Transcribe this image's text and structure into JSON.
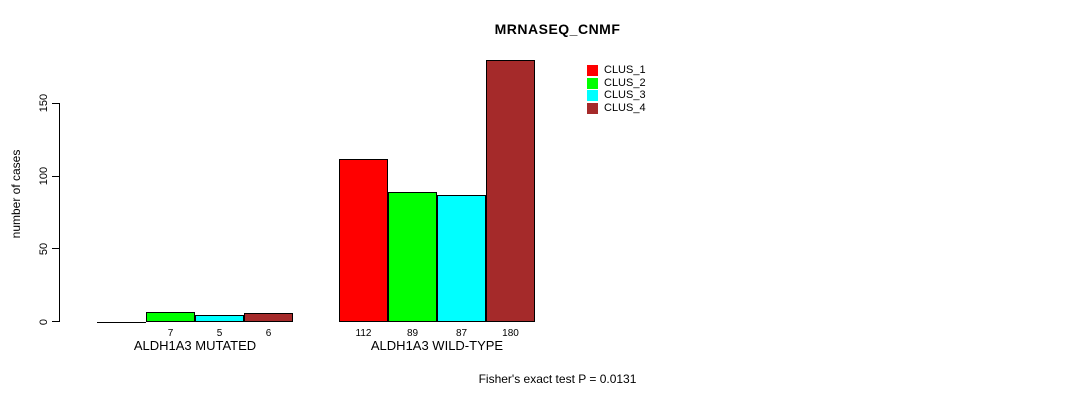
{
  "chart_data": {
    "type": "bar",
    "title": "MRNASEQ_CNMF",
    "ylabel": "number of cases",
    "xlabel": "",
    "ylim": [
      0,
      180
    ],
    "yticks": [
      0,
      50,
      100,
      150
    ],
    "grid": false,
    "legend_position": "top-right-inside",
    "categories": [
      "ALDH1A3 MUTATED",
      "ALDH1A3 WILD-TYPE"
    ],
    "series": [
      {
        "name": "CLUS_1",
        "color": "#FF0000",
        "values": [
          0,
          112
        ]
      },
      {
        "name": "CLUS_2",
        "color": "#00FF00",
        "values": [
          7,
          89
        ]
      },
      {
        "name": "CLUS_3",
        "color": "#00FFFF",
        "values": [
          5,
          87
        ]
      },
      {
        "name": "CLUS_4",
        "color": "#A52A2A",
        "values": [
          6,
          180
        ]
      }
    ],
    "value_labels": [
      [
        "",
        "7",
        "5",
        "6"
      ],
      [
        "112",
        "89",
        "87",
        "180"
      ]
    ],
    "annotation": "Fisher's exact test P = 0.0131",
    "axis_color": "#000000",
    "background_color": "#FFFFFF"
  }
}
